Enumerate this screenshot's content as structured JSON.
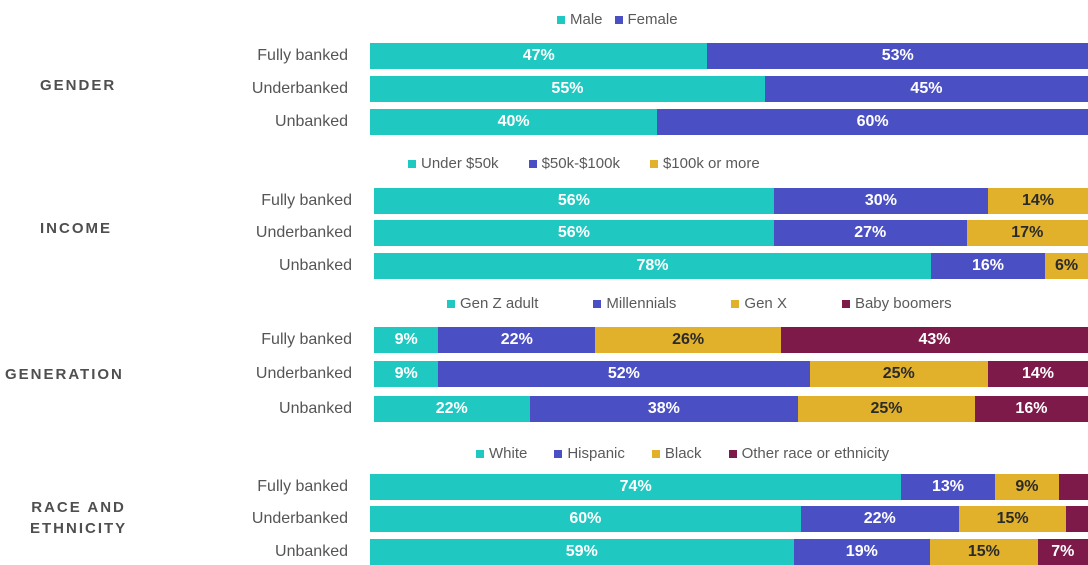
{
  "chart_data": [
    {
      "type": "bar",
      "orientation": "horizontal",
      "stacked": true,
      "section": "GENDER",
      "categories": [
        "Fully banked",
        "Underbanked",
        "Unbanked"
      ],
      "series": [
        {
          "name": "Male",
          "color": "#1fc8c0",
          "values": [
            47,
            55,
            40
          ]
        },
        {
          "name": "Female",
          "color": "#4b4fc4",
          "values": [
            53,
            45,
            60
          ]
        }
      ]
    },
    {
      "type": "bar",
      "orientation": "horizontal",
      "stacked": true,
      "section": "INCOME",
      "categories": [
        "Fully banked",
        "Underbanked",
        "Unbanked"
      ],
      "series": [
        {
          "name": "Under $50k",
          "color": "#1fc8c0",
          "values": [
            56,
            56,
            78
          ]
        },
        {
          "name": "$50k-$100k",
          "color": "#4b4fc4",
          "values": [
            30,
            27,
            16
          ]
        },
        {
          "name": "$100k or more",
          "color": "#e1b12c",
          "values": [
            14,
            17,
            6
          ]
        }
      ]
    },
    {
      "type": "bar",
      "orientation": "horizontal",
      "stacked": true,
      "section": "GENERATION",
      "categories": [
        "Fully banked",
        "Underbanked",
        "Unbanked"
      ],
      "series": [
        {
          "name": "Gen Z adult",
          "color": "#1fc8c0",
          "values": [
            9,
            9,
            22
          ]
        },
        {
          "name": "Millennials",
          "color": "#4b4fc4",
          "values": [
            22,
            52,
            38
          ]
        },
        {
          "name": "Gen X",
          "color": "#e1b12c",
          "values": [
            26,
            25,
            25
          ]
        },
        {
          "name": "Baby boomers",
          "color": "#7d1a4a",
          "values": [
            43,
            14,
            16
          ]
        }
      ]
    },
    {
      "type": "bar",
      "orientation": "horizontal",
      "stacked": true,
      "section": "RACE AND ETHNICITY",
      "categories": [
        "Fully banked",
        "Underbanked",
        "Unbanked"
      ],
      "series": [
        {
          "name": "White",
          "color": "#1fc8c0",
          "values": [
            74,
            60,
            59
          ]
        },
        {
          "name": "Hispanic",
          "color": "#4b4fc4",
          "values": [
            13,
            22,
            19
          ]
        },
        {
          "name": "Black",
          "color": "#e1b12c",
          "values": [
            9,
            15,
            15
          ]
        },
        {
          "name": "Other race or ethnicity",
          "color": "#7d1a4a",
          "values": [
            4,
            3,
            7
          ]
        }
      ],
      "hidden_labels": [
        [
          false,
          false,
          false,
          true
        ],
        [
          false,
          false,
          false,
          true
        ],
        [
          false,
          false,
          false,
          false
        ]
      ]
    }
  ],
  "section_lines": [
    [
      "GENDER"
    ],
    [
      "INCOME"
    ],
    [
      "GENERATION"
    ],
    [
      "RACE AND",
      "ETHNICITY"
    ]
  ]
}
